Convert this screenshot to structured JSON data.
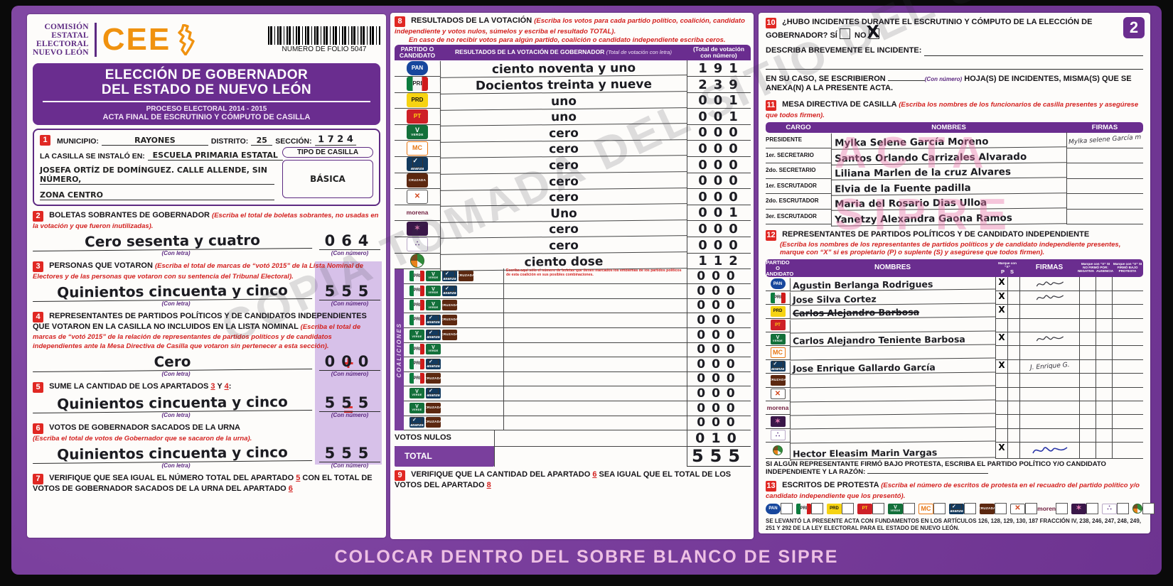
{
  "colors": {
    "purple_main": "#7a3f9d",
    "purple_dark": "#6a2d8f",
    "orange_brand": "#f0920f",
    "red_accent": "#e02823",
    "band_lilac": "#d7c1e9",
    "stamp_pink": "#e979af",
    "ink": "#1c1c22"
  },
  "watermark_diagonal": "COPIA TOMADA DEL SITIO DEL SIPRE",
  "stamp": {
    "line1": "ACTA",
    "line2": "SIPRE"
  },
  "footer_band": "COLOCAR DENTRO DEL SOBRE BLANCO DE SIPRE",
  "page_badge": "2",
  "labels": {
    "con_letra": "(Con letra)",
    "con_numero": "(Con número)"
  },
  "header": {
    "org1": "COMISIÓN",
    "org2": "ESTATAL",
    "org3": "ELECTORAL",
    "org4": "NUEVO LEÓN",
    "cee": "CEE",
    "folio": "NUMERO DE FOLIO 5047"
  },
  "title": {
    "line1": "ELECCIÓN DE GOBERNADOR",
    "line2": "DEL ESTADO DE NUEVO LEÓN",
    "line3": "PROCESO ELECTORAL  2014 - 2015",
    "line4": "ACTA FINAL DE ESCRUTINIO Y CÓMPUTO DE CASILLA"
  },
  "section1": {
    "num": "1",
    "municipio_label": "MUNICIPIO:",
    "municipio_value": "RAYONES",
    "distrito_label": "DISTRITO:",
    "distrito_value": "25",
    "seccion_label": "SECCIÓN:",
    "seccion_value": "1 7 2 4",
    "instalada_label": "LA CASILLA SE INSTALÓ EN:",
    "instalada_value": "ESCUELA PRIMARIA ESTATAL",
    "direccion2": "JOSEFA ORTÍZ DE DOMÍNGUEZ. CALLE ALLENDE, SIN NÚMERO,",
    "direccion3": "ZONA CENTRO",
    "tipo_label": "TIPO DE CASILLA",
    "tipo_value": "BÁSICA"
  },
  "section2": {
    "num": "2",
    "label": "BOLETAS SOBRANTES DE GOBERNADOR",
    "instr": "(Escriba el total de boletas sobrantes, no usadas en la votación y que fueron inutilizadas).",
    "letra": "Cero sesenta y cuatro",
    "numero": "064"
  },
  "section3": {
    "num": "3",
    "label": "PERSONAS QUE VOTARON",
    "instr": "(Escriba el total de marcas de “votó 2015” de la Lista Nominal de Electores y de las personas que votaron con su sentencia del Tribunal Electoral).",
    "letra": "Quinientos cincuenta y cinco",
    "numero": "555"
  },
  "section4": {
    "num": "4",
    "label": "REPRESENTANTES DE PARTIDOS POLÍTICOS Y DE CANDIDATOS INDEPENDIENTES QUE VOTARON EN LA CASILLA NO INCLUIDOS EN LA LISTA NOMINAL",
    "instr": "(Escriba el total de marcas de “votó 2015” de la relación de representantes de partidos políticos y de candidatos independientes ante la Mesa Directiva de Casilla que votaron sin pertenecer a esta sección).",
    "letra": "Cero",
    "numero": "000",
    "plus": "+"
  },
  "section5": {
    "num": "5",
    "label": "SUME LA CANTIDAD DE LOS APARTADOS",
    "ref1": "3",
    "mid": "Y",
    "ref2": "4",
    "colon": ":",
    "letra": "Quinientos cincuenta y cinco",
    "numero": "555",
    "equals": "="
  },
  "section6": {
    "num": "6",
    "label": "VOTOS DE GOBERNADOR SACADOS DE LA URNA",
    "instr": "(Escriba el total de votos de Gobernador que se sacaron de la urna).",
    "letra": "Quinientos cincuenta y cinco",
    "numero": "555"
  },
  "section7": {
    "num": "7",
    "t1": "VERIFIQUE QUE SEA IGUAL EL NÚMERO TOTAL DEL APARTADO",
    "r1": "5",
    "t2": "CON EL TOTAL DE VOTOS DE GOBERNADOR SACADOS DE LA URNA DEL APARTADO",
    "r2": "6"
  },
  "section8": {
    "num": "8",
    "label": "RESULTADOS DE LA VOTACIÓN",
    "instr1": "(Escriba los votos para cada partido político, coalición, candidato independiente y votos nulos, súmelos y escriba el resultado TOTAL).",
    "instr2": "En caso de no recibir votos para algún partido, coalición o candidato independiente escriba ceros.",
    "col1a": "PARTIDO O",
    "col1b": "CANDIDATO",
    "col2": "RESULTADOS DE LA VOTACIÓN DE GOBERNADOR",
    "col2sub": "(Total de votación con letra)",
    "col3": "(Total de votación con número)",
    "rows": [
      {
        "party": "pan",
        "letra": "ciento noventa y uno",
        "numero": "191"
      },
      {
        "party": "pri",
        "letra": "Docientos treinta y nueve",
        "numero": "239"
      },
      {
        "party": "prd",
        "letra": "uno",
        "numero": "001"
      },
      {
        "party": "pt",
        "letra": "uno",
        "numero": "001"
      },
      {
        "party": "verde",
        "letra": "cero",
        "numero": "000"
      },
      {
        "party": "mc",
        "letra": "cero",
        "numero": "000"
      },
      {
        "party": "alianza",
        "letra": "cero",
        "numero": "000"
      },
      {
        "party": "cruzada",
        "letra": "cero",
        "numero": "000"
      },
      {
        "party": "humanista",
        "letra": "cero",
        "numero": "000"
      },
      {
        "party": "morena",
        "letra": "Uno",
        "numero": "001"
      },
      {
        "party": "es",
        "letra": "cero",
        "numero": "000"
      },
      {
        "party": "encuentro",
        "letra": "cero",
        "numero": "000"
      },
      {
        "party": "independiente",
        "letra": "ciento dose",
        "numero": "112"
      }
    ],
    "coalicion_label": "COALICIONES",
    "coalicion_instr": "Escriba aquí sólo el número de boletas que tienen marcados los emblemas de los partidos políticos de esta coalición en sus posibles combinaciones.",
    "coaliciones": [
      {
        "parties": [
          "pri",
          "verde",
          "alianza",
          "cruzada"
        ],
        "numero": "000"
      },
      {
        "parties": [
          "pri",
          "verde",
          "alianza"
        ],
        "numero": "000"
      },
      {
        "parties": [
          "pri",
          "verde",
          "cruzada"
        ],
        "numero": "000"
      },
      {
        "parties": [
          "pri",
          "alianza",
          "cruzada"
        ],
        "numero": "000"
      },
      {
        "parties": [
          "verde",
          "alianza",
          "cruzada"
        ],
        "numero": "000"
      },
      {
        "parties": [
          "pri",
          "verde"
        ],
        "numero": "000"
      },
      {
        "parties": [
          "pri",
          "alianza"
        ],
        "numero": "000"
      },
      {
        "parties": [
          "pri",
          "cruzada"
        ],
        "numero": "000"
      },
      {
        "parties": [
          "verde",
          "alianza"
        ],
        "numero": "000"
      },
      {
        "parties": [
          "verde",
          "cruzada"
        ],
        "numero": "000"
      },
      {
        "parties": [
          "alianza",
          "cruzada"
        ],
        "numero": "000"
      }
    ],
    "votos_nulos_label": "VOTOS NULOS",
    "votos_nulos": "010",
    "total_label": "TOTAL",
    "total": "555"
  },
  "section9": {
    "num": "9",
    "t1": "VERIFIQUE QUE LA CANTIDAD DEL APARTADO",
    "r1": "6",
    "t2": "SEA IGUAL QUE EL TOTAL DE LOS VOTOS DEL APARTADO",
    "r2": "8"
  },
  "section10": {
    "num": "10",
    "q": "¿HUBO INCIDENTES DURANTE EL ESCRUTINIO Y CÓMPUTO DE LA ELECCIÓN DE GOBERNADOR?",
    "si": "SÍ",
    "no": "NO",
    "no_mark": "X",
    "desc_label": "DESCRIBA BREVEMENTE EL INCIDENTE:",
    "hojas1": "EN SU CASO, SE ESCRIBIERON",
    "hojas_sub": "(Con número)",
    "hojas2": "HOJA(S) DE INCIDENTES, MISMA(S) QUE SE",
    "hojas3": "ANEXA(N) A LA PRESENTE ACTA."
  },
  "section11": {
    "num": "11",
    "label": "MESA DIRECTIVA DE CASILLA",
    "instr": "(Escriba los nombres de los funcionarios de casilla presentes y asegúrese que todos firmen).",
    "col_cargo": "CARGO",
    "col_nombres": "NOMBRES",
    "col_firmas": "FIRMAS",
    "rows": [
      {
        "cargo": "PRESIDENTE",
        "nombre": "Mylka Selene García Moreno",
        "firma": "Mylka selene García m"
      },
      {
        "cargo": "1er. SECRETARIO",
        "nombre": "Santos Orlando Carrizales Alvarado",
        "firma": ""
      },
      {
        "cargo": "2do. SECRETARIO",
        "nombre": "Liliana Marlen de la cruz Alvares",
        "firma": ""
      },
      {
        "cargo": "1er. ESCRUTADOR",
        "nombre": "Elvia de la Fuente padilla",
        "firma": ""
      },
      {
        "cargo": "2do. ESCRUTADOR",
        "nombre": "Maria del Rosario Dias Ulloa",
        "firma": ""
      },
      {
        "cargo": "3er. ESCRUTADOR",
        "nombre": "Yanetzy Alexandra Gaona Ramos",
        "firma": ""
      }
    ]
  },
  "section12": {
    "num": "12",
    "label": "REPRESENTANTES DE PARTIDOS POLÍTICOS Y DE CANDIDATO INDEPENDIENTE",
    "instr": "(Escriba los nombres de los representantes de partidos políticos y de candidato independiente presentes, marque con “X” si es propietario (P) o suplente (S) y asegúrese que todos firmen).",
    "col_party1": "PARTIDO O",
    "col_party2": "CANDIDATO",
    "col_nombres": "NOMBRES",
    "col_marque": "Marque con “X”",
    "col_p": "P",
    "col_s": "S",
    "col_firmas": "FIRMAS",
    "col_nofirmo": "Marque con “X” SI NO FIRMÓ POR:",
    "col_negativa": "NEGATIVA",
    "col_ausencia": "AUSENCIA",
    "col_protesta": "Marque con “X” SI FIRMÓ BAJO PROTESTA",
    "rows": [
      {
        "party": "pan",
        "nombre": "Agustin Berlanga Rodrigues",
        "p": "X",
        "s": "",
        "firma": "scribble",
        "strike": false
      },
      {
        "party": "pri",
        "nombre": "Jose Silva Cortez",
        "p": "X",
        "s": "",
        "firma": "scribble",
        "strike": false
      },
      {
        "party": "prd",
        "nombre": "Carlos Alejandro Barbosa",
        "p": "X",
        "s": "",
        "firma": "",
        "strike": true
      },
      {
        "party": "pt",
        "nombre": "",
        "p": "",
        "s": "",
        "firma": "",
        "strike": false
      },
      {
        "party": "verde",
        "nombre": "Carlos Alejandro Teniente Barbosa",
        "p": "X",
        "s": "",
        "firma": "scribble",
        "strike": false
      },
      {
        "party": "mc",
        "nombre": "",
        "p": "",
        "s": "",
        "firma": "",
        "strike": false
      },
      {
        "party": "alianza",
        "nombre": "Jose Enrique Gallardo García",
        "p": "X",
        "s": "",
        "firma": "J. Enrique G.",
        "strike": false
      },
      {
        "party": "cruzada",
        "nombre": "",
        "p": "",
        "s": "",
        "firma": "",
        "strike": false
      },
      {
        "party": "humanista",
        "nombre": "",
        "p": "",
        "s": "",
        "firma": "",
        "strike": false
      },
      {
        "party": "morena",
        "nombre": "",
        "p": "",
        "s": "",
        "firma": "",
        "strike": false
      },
      {
        "party": "es",
        "nombre": "",
        "p": "",
        "s": "",
        "firma": "",
        "strike": false
      },
      {
        "party": "encuentro",
        "nombre": "",
        "p": "",
        "s": "",
        "firma": "",
        "strike": false
      },
      {
        "party": "independiente",
        "nombre": "Hector Eleasim Marin Vargas",
        "p": "X",
        "s": "",
        "firma": "scribble-blue",
        "strike": false
      }
    ],
    "protesta_note": "SI ALGÚN REPRESENTANTE FIRMÓ BAJO PROTESTA, ESCRIBA EL PARTIDO POLÍTICO Y/O CANDIDATO INDEPENDIENTE Y LA RAZÓN:"
  },
  "section13": {
    "num": "13",
    "label": "ESCRITOS DE PROTESTA",
    "instr": "(Escriba el número de escritos de protesta en el recuadro del partido político y/o candidato independiente que los presentó).",
    "parties": [
      "pan",
      "pri",
      "prd",
      "pt",
      "verde",
      "mc",
      "alianza",
      "cruzada",
      "humanista",
      "morena",
      "es",
      "encuentro",
      "independiente"
    ]
  },
  "legal": "SE LEVANTÓ LA PRESENTE ACTA CON FUNDAMENTOS EN LOS ARTÍCULOS 126, 128, 129, 130, 187 FRACCIÓN IV, 238, 246, 247, 248, 249, 251 Y 292 DE LA LEY ELECTORAL PARA EL ESTADO DE NUEVO LEÓN.",
  "parties": {
    "pan": {
      "name": "pan",
      "label": "PAN"
    },
    "pri": {
      "name": "pri",
      "label": "PRI"
    },
    "prd": {
      "name": "prd",
      "label": "PRD"
    },
    "pt": {
      "name": "pt",
      "label": "PT"
    },
    "verde": {
      "name": "partido-verde",
      "label": "VERDE"
    },
    "mc": {
      "name": "movimiento-ciudadano",
      "label": "MC"
    },
    "alianza": {
      "name": "nueva-alianza",
      "label": "alianza"
    },
    "cruzada": {
      "name": "cruzada-ciudadana",
      "label": "CRUZADA"
    },
    "humanista": {
      "name": "partido-humanista",
      "label": "✕"
    },
    "morena": {
      "name": "morena",
      "label": "morena"
    },
    "es": {
      "name": "encuentro-social",
      "label": "✶"
    },
    "encuentro": {
      "name": "encuentro",
      "label": "∴"
    },
    "independiente": {
      "name": "candidato-independiente",
      "label": ""
    }
  }
}
